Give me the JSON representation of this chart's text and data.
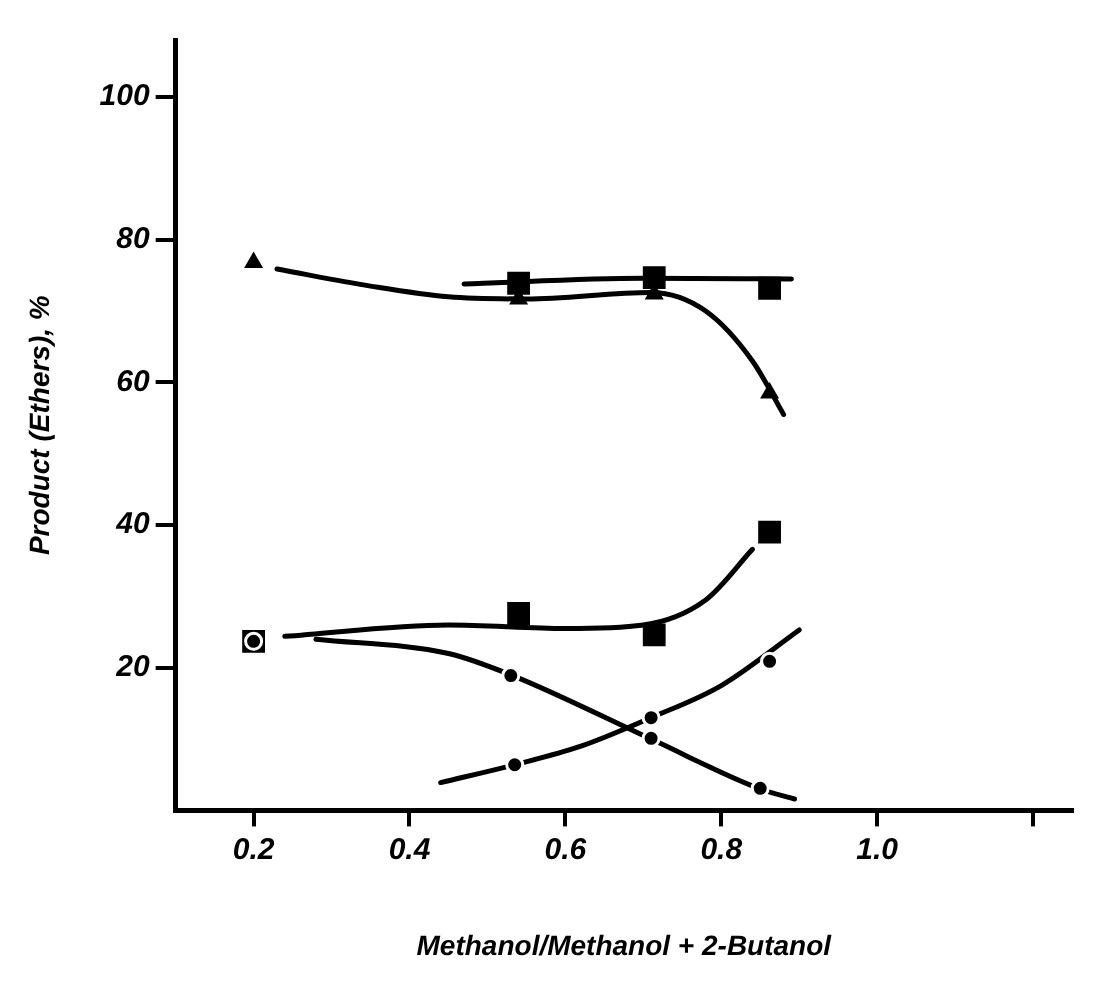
{
  "chart_data": {
    "type": "scatter",
    "xlabel": "Methanol/Methanol + 2-Butanol",
    "ylabel": "Product (Ethers), %",
    "xlim": [
      0.1,
      1.25
    ],
    "xticks": [
      {
        "value": 0.2,
        "label": "0.2"
      },
      {
        "value": 0.4,
        "label": "0.4"
      },
      {
        "value": 0.6,
        "label": "0.6"
      },
      {
        "value": 0.8,
        "label": "0.8"
      },
      {
        "value": 1.0,
        "label": "1.0"
      },
      {
        "value": 1.2,
        "label": null
      }
    ],
    "ylim": [
      0,
      108
    ],
    "yticks": [
      20,
      40,
      60,
      80,
      100
    ],
    "grid": false,
    "legend": false,
    "series": [
      {
        "type": "scatter",
        "marker": "triangle",
        "color": "#000000",
        "x": [
          0.2,
          0.54,
          0.714,
          0.862
        ],
        "values": [
          76.8,
          71.7,
          72.4,
          58.5
        ]
      },
      {
        "type": "scatter",
        "marker": "square",
        "color": "#000000",
        "x": [
          0.54,
          0.714,
          0.862
        ],
        "values": [
          73.9,
          74.7,
          73.2
        ]
      },
      {
        "type": "scatter",
        "marker": "square",
        "color": "#000000",
        "x": [
          0.2,
          0.54,
          0.714,
          0.862
        ],
        "values": [
          23.7,
          27.6,
          24.6,
          39.0
        ]
      },
      {
        "type": "scatter",
        "marker": "circle",
        "color": "#000000",
        "x": [
          0.535,
          0.71,
          0.862
        ],
        "values": [
          6.4,
          13.0,
          20.9
        ]
      },
      {
        "type": "scatter",
        "marker": "circle",
        "color": "#000000",
        "x": [
          0.2,
          0.53,
          0.71,
          0.85
        ],
        "values": [
          23.7,
          18.9,
          10.1,
          3.1
        ]
      },
      {
        "type": "line",
        "marker": "none",
        "color": "#000000",
        "x": [
          0.23,
          0.35,
          0.45,
          0.55,
          0.71,
          0.78,
          0.84,
          0.88
        ],
        "values": [
          75.9,
          73.5,
          72,
          71.7,
          72.6,
          70,
          63,
          55.5
        ]
      },
      {
        "type": "line",
        "marker": "none",
        "color": "#000000",
        "x": [
          0.47,
          0.7,
          0.89
        ],
        "values": [
          73.8,
          74.6,
          74.5
        ]
      },
      {
        "type": "line",
        "marker": "none",
        "color": "#000000",
        "x": [
          0.24,
          0.45,
          0.6,
          0.7,
          0.78,
          0.84
        ],
        "values": [
          24.4,
          26,
          25.5,
          26,
          29.5,
          36.6
        ]
      },
      {
        "type": "line",
        "marker": "none",
        "color": "#000000",
        "x": [
          0.28,
          0.45,
          0.53,
          0.71,
          0.85,
          0.894
        ],
        "values": [
          24,
          22,
          19,
          10,
          3,
          1.6
        ]
      },
      {
        "type": "line",
        "marker": "none",
        "color": "#000000",
        "x": [
          0.44,
          0.535,
          0.62,
          0.71,
          0.8,
          0.9
        ],
        "values": [
          3.9,
          6.4,
          9,
          13,
          17.5,
          25.3
        ]
      }
    ]
  }
}
